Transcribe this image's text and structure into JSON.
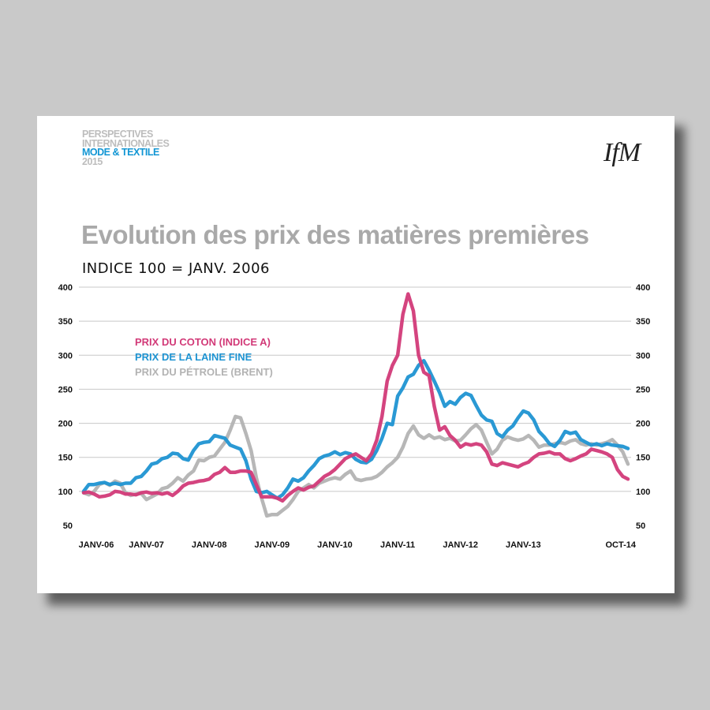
{
  "header": {
    "brand_lines": [
      "PERSPECTIVES",
      "INTERNATIONALES",
      "MODE & TEXTILE",
      "2015"
    ],
    "logo": "IfM"
  },
  "chart_data": {
    "type": "line",
    "title": "Evolution des prix des matières premières",
    "subtitle": "INDICE 100 = JANV. 2006",
    "ylim": [
      50,
      400
    ],
    "yticks": [
      50,
      100,
      150,
      200,
      250,
      300,
      350,
      400
    ],
    "y_axes": "left-and-right",
    "grid": true,
    "x": {
      "start": "2006-01",
      "end": "2014-10",
      "step": "month"
    },
    "xticks": [
      {
        "label": "JANV-06",
        "month": 0
      },
      {
        "label": "JANV-07",
        "month": 12
      },
      {
        "label": "JANV-08",
        "month": 24
      },
      {
        "label": "JANV-09",
        "month": 36
      },
      {
        "label": "JANV-10",
        "month": 48
      },
      {
        "label": "JANV-11",
        "month": 60
      },
      {
        "label": "JANV-12",
        "month": 72
      },
      {
        "label": "JANV-13",
        "month": 84
      },
      {
        "label": "OCT-14",
        "month": 105
      }
    ],
    "legend_position": "top-left",
    "series": [
      {
        "name": "PRIX DU PÉTROLE (BRENT)",
        "color": "#b3b3b3",
        "points": [
          [
            0,
            98
          ],
          [
            1,
            95
          ],
          [
            2,
            100
          ],
          [
            3,
            110
          ],
          [
            4,
            113
          ],
          [
            5,
            109
          ],
          [
            6,
            115
          ],
          [
            7,
            112
          ],
          [
            8,
            98
          ],
          [
            9,
            94
          ],
          [
            10,
            96
          ],
          [
            11,
            97
          ],
          [
            12,
            88
          ],
          [
            13,
            92
          ],
          [
            14,
            96
          ],
          [
            15,
            104
          ],
          [
            16,
            106
          ],
          [
            17,
            112
          ],
          [
            18,
            120
          ],
          [
            19,
            115
          ],
          [
            20,
            124
          ],
          [
            21,
            130
          ],
          [
            22,
            146
          ],
          [
            23,
            145
          ],
          [
            24,
            150
          ],
          [
            25,
            152
          ],
          [
            26,
            162
          ],
          [
            27,
            172
          ],
          [
            28,
            190
          ],
          [
            29,
            210
          ],
          [
            30,
            208
          ],
          [
            31,
            185
          ],
          [
            32,
            160
          ],
          [
            33,
            120
          ],
          [
            34,
            90
          ],
          [
            35,
            64
          ],
          [
            36,
            66
          ],
          [
            37,
            66
          ],
          [
            38,
            72
          ],
          [
            39,
            78
          ],
          [
            40,
            88
          ],
          [
            41,
            100
          ],
          [
            42,
            105
          ],
          [
            43,
            110
          ],
          [
            44,
            105
          ],
          [
            45,
            112
          ],
          [
            46,
            115
          ],
          [
            47,
            118
          ],
          [
            48,
            120
          ],
          [
            49,
            118
          ],
          [
            50,
            125
          ],
          [
            51,
            130
          ],
          [
            52,
            118
          ],
          [
            53,
            116
          ],
          [
            54,
            118
          ],
          [
            55,
            119
          ],
          [
            56,
            122
          ],
          [
            57,
            128
          ],
          [
            58,
            136
          ],
          [
            59,
            142
          ],
          [
            60,
            150
          ],
          [
            61,
            165
          ],
          [
            62,
            185
          ],
          [
            63,
            196
          ],
          [
            64,
            183
          ],
          [
            65,
            178
          ],
          [
            66,
            183
          ],
          [
            67,
            178
          ],
          [
            68,
            180
          ],
          [
            69,
            176
          ],
          [
            70,
            178
          ],
          [
            71,
            174
          ],
          [
            72,
            175
          ],
          [
            73,
            183
          ],
          [
            74,
            192
          ],
          [
            75,
            198
          ],
          [
            76,
            190
          ],
          [
            77,
            172
          ],
          [
            78,
            155
          ],
          [
            79,
            162
          ],
          [
            80,
            175
          ],
          [
            81,
            180
          ],
          [
            82,
            177
          ],
          [
            83,
            175
          ],
          [
            84,
            177
          ],
          [
            85,
            182
          ],
          [
            86,
            175
          ],
          [
            87,
            165
          ],
          [
            88,
            168
          ],
          [
            89,
            168
          ],
          [
            90,
            170
          ],
          [
            91,
            172
          ],
          [
            92,
            170
          ],
          [
            93,
            174
          ],
          [
            94,
            176
          ],
          [
            95,
            170
          ],
          [
            96,
            168
          ],
          [
            97,
            170
          ],
          [
            98,
            168
          ],
          [
            99,
            170
          ],
          [
            100,
            172
          ],
          [
            101,
            176
          ],
          [
            102,
            168
          ],
          [
            103,
            158
          ],
          [
            104,
            140
          ]
        ]
      },
      {
        "name": "PRIX DE LA LAINE FINE",
        "color": "#1f94d2",
        "points": [
          [
            0,
            100
          ],
          [
            1,
            110
          ],
          [
            2,
            110
          ],
          [
            3,
            112
          ],
          [
            4,
            113
          ],
          [
            5,
            110
          ],
          [
            6,
            112
          ],
          [
            7,
            110
          ],
          [
            8,
            112
          ],
          [
            9,
            112
          ],
          [
            10,
            120
          ],
          [
            11,
            122
          ],
          [
            12,
            130
          ],
          [
            13,
            140
          ],
          [
            14,
            142
          ],
          [
            15,
            148
          ],
          [
            16,
            150
          ],
          [
            17,
            156
          ],
          [
            18,
            155
          ],
          [
            19,
            148
          ],
          [
            20,
            146
          ],
          [
            21,
            160
          ],
          [
            22,
            170
          ],
          [
            23,
            172
          ],
          [
            24,
            173
          ],
          [
            25,
            182
          ],
          [
            26,
            180
          ],
          [
            27,
            178
          ],
          [
            28,
            168
          ],
          [
            29,
            165
          ],
          [
            30,
            162
          ],
          [
            31,
            145
          ],
          [
            32,
            118
          ],
          [
            33,
            100
          ],
          [
            34,
            98
          ],
          [
            35,
            100
          ],
          [
            36,
            95
          ],
          [
            37,
            90
          ],
          [
            38,
            95
          ],
          [
            39,
            105
          ],
          [
            40,
            118
          ],
          [
            41,
            115
          ],
          [
            42,
            120
          ],
          [
            43,
            130
          ],
          [
            44,
            138
          ],
          [
            45,
            148
          ],
          [
            46,
            152
          ],
          [
            47,
            154
          ],
          [
            48,
            158
          ],
          [
            49,
            154
          ],
          [
            50,
            157
          ],
          [
            51,
            155
          ],
          [
            52,
            147
          ],
          [
            53,
            143
          ],
          [
            54,
            142
          ],
          [
            55,
            147
          ],
          [
            56,
            160
          ],
          [
            57,
            178
          ],
          [
            58,
            200
          ],
          [
            59,
            198
          ],
          [
            60,
            240
          ],
          [
            61,
            252
          ],
          [
            62,
            268
          ],
          [
            63,
            272
          ],
          [
            64,
            285
          ],
          [
            65,
            292
          ],
          [
            66,
            278
          ],
          [
            67,
            262
          ],
          [
            68,
            245
          ],
          [
            69,
            225
          ],
          [
            70,
            232
          ],
          [
            71,
            228
          ],
          [
            72,
            238
          ],
          [
            73,
            244
          ],
          [
            74,
            241
          ],
          [
            75,
            226
          ],
          [
            76,
            212
          ],
          [
            77,
            205
          ],
          [
            78,
            203
          ],
          [
            79,
            185
          ],
          [
            80,
            180
          ],
          [
            81,
            190
          ],
          [
            82,
            196
          ],
          [
            83,
            208
          ],
          [
            84,
            218
          ],
          [
            85,
            215
          ],
          [
            86,
            205
          ],
          [
            87,
            188
          ],
          [
            88,
            180
          ],
          [
            89,
            170
          ],
          [
            90,
            166
          ],
          [
            91,
            175
          ],
          [
            92,
            188
          ],
          [
            93,
            185
          ],
          [
            94,
            187
          ],
          [
            95,
            176
          ],
          [
            96,
            172
          ],
          [
            97,
            168
          ],
          [
            98,
            170
          ],
          [
            99,
            167
          ],
          [
            100,
            170
          ],
          [
            101,
            168
          ],
          [
            102,
            167
          ],
          [
            103,
            166
          ],
          [
            104,
            163
          ]
        ]
      },
      {
        "name": "PRIX DU COTON (INDICE A)",
        "color": "#d23a78",
        "points": [
          [
            0,
            98
          ],
          [
            1,
            99
          ],
          [
            2,
            96
          ],
          [
            3,
            92
          ],
          [
            4,
            93
          ],
          [
            5,
            95
          ],
          [
            6,
            100
          ],
          [
            7,
            99
          ],
          [
            8,
            96
          ],
          [
            9,
            96
          ],
          [
            10,
            95
          ],
          [
            11,
            98
          ],
          [
            12,
            99
          ],
          [
            13,
            97
          ],
          [
            14,
            98
          ],
          [
            15,
            96
          ],
          [
            16,
            98
          ],
          [
            17,
            94
          ],
          [
            18,
            100
          ],
          [
            19,
            108
          ],
          [
            20,
            112
          ],
          [
            21,
            113
          ],
          [
            22,
            115
          ],
          [
            23,
            116
          ],
          [
            24,
            118
          ],
          [
            25,
            125
          ],
          [
            26,
            128
          ],
          [
            27,
            135
          ],
          [
            28,
            128
          ],
          [
            29,
            128
          ],
          [
            30,
            130
          ],
          [
            31,
            130
          ],
          [
            32,
            128
          ],
          [
            33,
            110
          ],
          [
            34,
            92
          ],
          [
            35,
            92
          ],
          [
            36,
            92
          ],
          [
            37,
            90
          ],
          [
            38,
            86
          ],
          [
            39,
            94
          ],
          [
            40,
            100
          ],
          [
            41,
            105
          ],
          [
            42,
            102
          ],
          [
            43,
            106
          ],
          [
            44,
            108
          ],
          [
            45,
            115
          ],
          [
            46,
            122
          ],
          [
            47,
            126
          ],
          [
            48,
            132
          ],
          [
            49,
            140
          ],
          [
            50,
            148
          ],
          [
            51,
            152
          ],
          [
            52,
            155
          ],
          [
            53,
            150
          ],
          [
            54,
            145
          ],
          [
            55,
            155
          ],
          [
            56,
            175
          ],
          [
            57,
            210
          ],
          [
            58,
            262
          ],
          [
            59,
            285
          ],
          [
            60,
            300
          ],
          [
            61,
            360
          ],
          [
            62,
            390
          ],
          [
            63,
            365
          ],
          [
            64,
            300
          ],
          [
            65,
            275
          ],
          [
            66,
            270
          ],
          [
            67,
            225
          ],
          [
            68,
            190
          ],
          [
            69,
            195
          ],
          [
            70,
            182
          ],
          [
            71,
            175
          ],
          [
            72,
            165
          ],
          [
            73,
            170
          ],
          [
            74,
            168
          ],
          [
            75,
            170
          ],
          [
            76,
            168
          ],
          [
            77,
            158
          ],
          [
            78,
            140
          ],
          [
            79,
            138
          ],
          [
            80,
            142
          ],
          [
            81,
            140
          ],
          [
            82,
            138
          ],
          [
            83,
            136
          ],
          [
            84,
            140
          ],
          [
            85,
            143
          ],
          [
            86,
            150
          ],
          [
            87,
            155
          ],
          [
            88,
            156
          ],
          [
            89,
            158
          ],
          [
            90,
            155
          ],
          [
            91,
            155
          ],
          [
            92,
            148
          ],
          [
            93,
            145
          ],
          [
            94,
            148
          ],
          [
            95,
            152
          ],
          [
            96,
            155
          ],
          [
            97,
            162
          ],
          [
            98,
            160
          ],
          [
            99,
            158
          ],
          [
            100,
            155
          ],
          [
            101,
            150
          ],
          [
            102,
            132
          ],
          [
            103,
            122
          ],
          [
            104,
            118
          ]
        ]
      }
    ]
  }
}
